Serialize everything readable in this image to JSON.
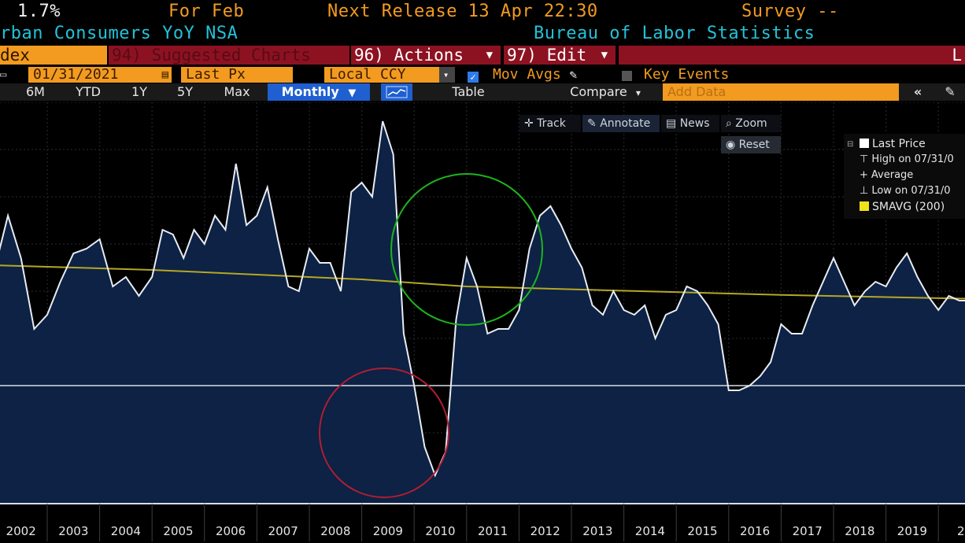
{
  "header": {
    "value": "1.7%",
    "for_label": "For Feb",
    "next_release": "Next Release 13 Apr 22:30",
    "survey": "Survey --",
    "series_desc": "rban Consumers YoY NSA",
    "source": "Bureau of Labor Statistics"
  },
  "menu": {
    "index_label": "dex",
    "suggested": "94) Suggested Charts",
    "actions": "96) Actions",
    "edit": "97) Edit",
    "right_letter": "L"
  },
  "controls": {
    "date": "01/31/2021",
    "field": "Last Px",
    "currency": "Local CCY",
    "mov_avgs": "Mov Avgs",
    "key_events": "Key Events"
  },
  "periods": {
    "items": [
      "6M",
      "YTD",
      "1Y",
      "5Y",
      "Max"
    ],
    "frequency": "Monthly",
    "table": "Table",
    "compare": "Compare",
    "add_data_placeholder": "Add Data"
  },
  "chart_toolbar": {
    "track": "Track",
    "annotate": "Annotate",
    "news": "News",
    "zoom": "Zoom",
    "reset": "Reset"
  },
  "legend": {
    "items": [
      "Last Price",
      "High on 07/31/0",
      "Average",
      "Low on 07/31/0",
      "SMAVG (200)"
    ]
  },
  "colors": {
    "header_orange": "#f29b20",
    "header_cyan": "#21c3d8",
    "menu_red": "#8c1222",
    "line": "#e8ecf3",
    "fill": "#0d2244",
    "smavg": "#b5a726",
    "circle_green": "#1db41d",
    "circle_red": "#b01d33",
    "period_active": "#1f5fd0"
  },
  "chart_data": {
    "type": "line",
    "x_labels": [
      "2002",
      "2003",
      "2004",
      "2005",
      "2006",
      "2007",
      "2008",
      "2009",
      "2010",
      "2011",
      "2012",
      "2013",
      "2014",
      "2015",
      "2016",
      "2017",
      "2018",
      "2019",
      "20"
    ],
    "series": [
      {
        "name": "Last Price",
        "x": [
          2001.05,
          2001.25,
          2001.5,
          2001.75,
          2002.0,
          2002.25,
          2002.5,
          2002.75,
          2003.0,
          2003.25,
          2003.5,
          2003.75,
          2004.0,
          2004.2,
          2004.4,
          2004.6,
          2004.8,
          2005.0,
          2005.2,
          2005.4,
          2005.6,
          2005.8,
          2006.0,
          2006.2,
          2006.4,
          2006.6,
          2006.8,
          2007.0,
          2007.2,
          2007.4,
          2007.6,
          2007.8,
          2008.0,
          2008.2,
          2008.4,
          2008.6,
          2008.8,
          2009.0,
          2009.2,
          2009.4,
          2009.6,
          2009.8,
          2010.0,
          2010.2,
          2010.4,
          2010.6,
          2010.8,
          2011.0,
          2011.2,
          2011.4,
          2011.6,
          2011.8,
          2012.0,
          2012.2,
          2012.4,
          2012.6,
          2012.8,
          2013.0,
          2013.2,
          2013.4,
          2013.6,
          2013.8,
          2014.0,
          2014.2,
          2014.4,
          2014.6,
          2014.8,
          2015.0,
          2015.2,
          2015.4,
          2015.6,
          2015.8,
          2016.0,
          2016.2,
          2016.4,
          2016.6,
          2016.8,
          2017.0,
          2017.2,
          2017.4,
          2017.6,
          2017.8,
          2018.0,
          2018.2,
          2018.4,
          2018.6,
          2018.8,
          2019.0,
          2019.2,
          2019.4,
          2019.6,
          2019.8,
          2020.0,
          2020.2,
          2020.4
        ],
        "y": [
          2.7,
          3.6,
          2.7,
          1.2,
          1.5,
          2.2,
          2.8,
          2.9,
          3.1,
          2.1,
          2.3,
          1.9,
          2.3,
          3.3,
          3.2,
          2.7,
          3.3,
          3.0,
          3.6,
          3.3,
          4.7,
          3.4,
          3.6,
          4.2,
          3.1,
          2.1,
          2.0,
          2.9,
          2.6,
          2.6,
          2.0,
          4.1,
          4.3,
          4.0,
          5.6,
          4.9,
          1.1,
          0.0,
          -1.3,
          -1.9,
          -1.4,
          1.4,
          2.7,
          2.1,
          1.1,
          1.2,
          1.2,
          1.6,
          2.9,
          3.6,
          3.8,
          3.4,
          2.9,
          2.5,
          1.7,
          1.5,
          2.0,
          1.6,
          1.5,
          1.7,
          1.0,
          1.5,
          1.6,
          2.1,
          2.0,
          1.7,
          1.3,
          -0.1,
          -0.1,
          0.0,
          0.2,
          0.5,
          1.3,
          1.1,
          1.1,
          1.7,
          2.2,
          2.7,
          2.2,
          1.7,
          2.0,
          2.2,
          2.1,
          2.5,
          2.8,
          2.3,
          1.9,
          1.6,
          1.9,
          1.8,
          1.8,
          2.3,
          2.5,
          1.5,
          0.1
        ]
      },
      {
        "name": "SMAVG (200)",
        "x": [
          2001.0,
          2004.0,
          2008.0,
          2010.0,
          2016.0,
          2020.5
        ],
        "y": [
          2.55,
          2.45,
          2.25,
          2.1,
          1.92,
          1.82
        ]
      }
    ],
    "ylim": [
      -2.5,
      6.0
    ],
    "zero_line": 0,
    "grid": true,
    "legend_position": "top-right"
  }
}
